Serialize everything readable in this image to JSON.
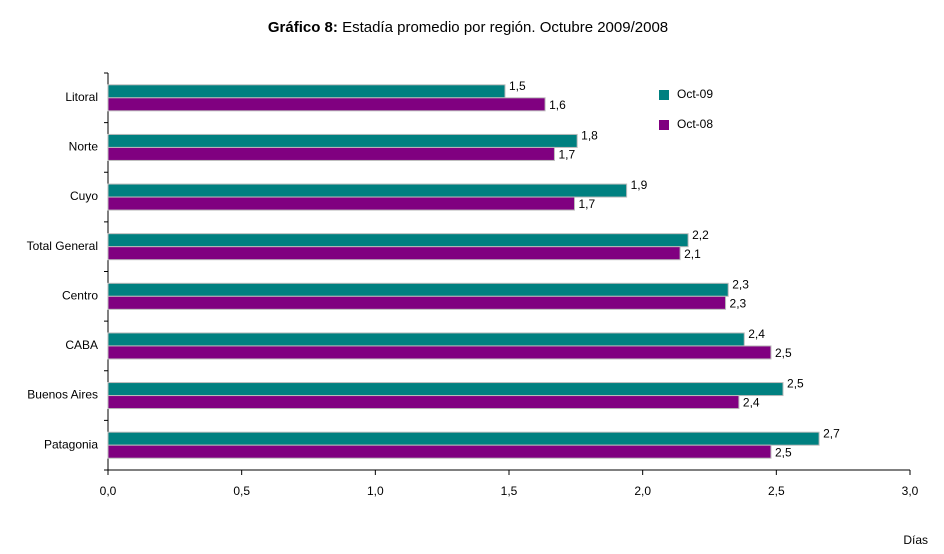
{
  "chart_data": {
    "type": "hbar",
    "title_prefix": "Gráfico 8:",
    "title": "Estadía promedio por región. Octubre 2009/2008",
    "x_label": "Días",
    "categories": [
      "Litoral",
      "Norte",
      "Cuyo",
      "Total General",
      "Centro",
      "CABA",
      "Buenos Aires",
      "Patagonia"
    ],
    "series": [
      {
        "name": "Oct-09",
        "color": "#008080",
        "values": [
          1.485,
          1.755,
          1.94,
          2.17,
          2.32,
          2.38,
          2.525,
          2.66
        ],
        "value_labels": [
          "1,5",
          "1,8",
          "1,9",
          "2,2",
          "2,3",
          "2,4",
          "2,5",
          "2,7"
        ]
      },
      {
        "name": "Oct-08",
        "color": "#800080",
        "values": [
          1.635,
          1.67,
          1.745,
          2.14,
          2.31,
          2.48,
          2.36,
          2.48
        ],
        "value_labels": [
          "1,6",
          "1,7",
          "1,7",
          "2,1",
          "2,3",
          "2,5",
          "2,4",
          "2,5"
        ]
      }
    ],
    "xlim": [
      0,
      3
    ],
    "xticks": [
      {
        "value": 0,
        "label": "0,0"
      },
      {
        "value": 0.5,
        "label": "0,5"
      },
      {
        "value": 1,
        "label": "1,0"
      },
      {
        "value": 1.5,
        "label": "1,5"
      },
      {
        "value": 2,
        "label": "2,0"
      },
      {
        "value": 2.5,
        "label": "2,5"
      },
      {
        "value": 3,
        "label": "3,0"
      }
    ],
    "legend": "top-right"
  }
}
